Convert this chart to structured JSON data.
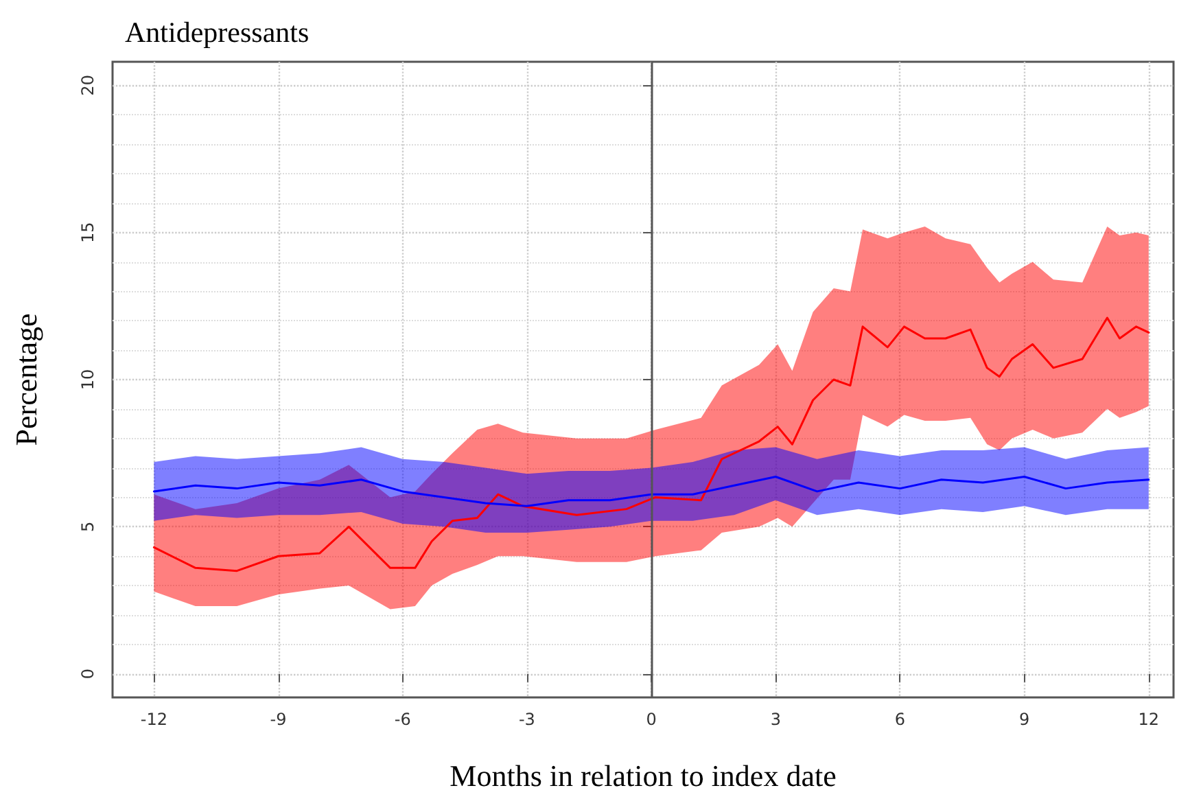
{
  "chart_data": {
    "type": "line",
    "title": "Antidepressants",
    "xlabel": "Months in relation to index date",
    "ylabel": "Percentage",
    "xlim": [
      -13,
      12.6
    ],
    "xticks": [
      -12,
      -9,
      -6,
      -3,
      0,
      3,
      6,
      9,
      12
    ],
    "ylim": [
      -0.8,
      20.8
    ],
    "yticks": [
      0,
      5,
      10,
      15,
      20
    ],
    "grid": true,
    "marker": "none",
    "line_style": "solid",
    "ref_lines": [
      {
        "axis": "x",
        "value": 0,
        "color": "#555555"
      }
    ],
    "series": [
      {
        "color": "#ff0000",
        "x": [
          -12,
          -11,
          -10,
          -9,
          -8,
          -7.3,
          -6.3,
          -5.7,
          -5.3,
          -4.8,
          -4.2,
          -3.7,
          -3.1,
          -1.8,
          -0.6,
          0.1,
          1.2,
          1.7,
          2.6,
          3.05,
          3.4,
          3.9,
          4.4,
          4.8,
          5.1,
          5.7,
          6.1,
          6.6,
          7.1,
          7.7,
          8.1,
          8.4,
          8.7,
          9.2,
          9.7,
          10.4,
          11,
          11.3,
          11.7,
          12
        ],
        "values": [
          4.3,
          3.6,
          3.5,
          4.0,
          4.1,
          5.0,
          3.6,
          3.6,
          4.5,
          5.2,
          5.3,
          6.1,
          5.7,
          5.4,
          5.6,
          6.0,
          5.9,
          7.3,
          7.9,
          8.4,
          7.8,
          9.3,
          10.0,
          9.8,
          11.8,
          11.1,
          11.8,
          11.4,
          11.4,
          11.7,
          10.4,
          10.1,
          10.7,
          11.2,
          10.4,
          10.7,
          12.1,
          11.4,
          11.8,
          11.6
        ],
        "upper": [
          6.1,
          5.6,
          5.8,
          6.3,
          6.6,
          7.1,
          6.0,
          6.2,
          6.8,
          7.5,
          8.3,
          8.5,
          8.2,
          8.0,
          8.0,
          8.3,
          8.7,
          9.8,
          10.5,
          11.2,
          10.3,
          12.3,
          13.1,
          13.0,
          15.1,
          14.8,
          15.0,
          15.2,
          14.8,
          14.6,
          13.8,
          13.3,
          13.6,
          14.0,
          13.4,
          13.3,
          15.2,
          14.9,
          15.0,
          14.9
        ],
        "lower": [
          2.8,
          2.3,
          2.3,
          2.7,
          2.9,
          3.0,
          2.2,
          2.3,
          3.0,
          3.4,
          3.7,
          4.0,
          4.0,
          3.8,
          3.8,
          4.0,
          4.2,
          4.8,
          5.0,
          5.3,
          5.0,
          5.8,
          6.6,
          6.6,
          8.8,
          8.4,
          8.8,
          8.6,
          8.6,
          8.7,
          7.8,
          7.6,
          8.0,
          8.3,
          8.0,
          8.2,
          9.0,
          8.7,
          8.9,
          9.1
        ]
      },
      {
        "color": "#0000ff",
        "x": [
          -12,
          -11,
          -10,
          -9,
          -8,
          -7,
          -6,
          -5,
          -4,
          -3,
          -2,
          -1,
          0,
          1,
          2,
          3,
          4,
          5,
          6,
          7,
          8,
          9,
          10,
          11,
          12
        ],
        "values": [
          6.2,
          6.4,
          6.3,
          6.5,
          6.4,
          6.6,
          6.2,
          6.0,
          5.8,
          5.7,
          5.9,
          5.9,
          6.1,
          6.1,
          6.4,
          6.7,
          6.2,
          6.5,
          6.3,
          6.6,
          6.5,
          6.7,
          6.3,
          6.5,
          6.6
        ],
        "upper": [
          7.2,
          7.4,
          7.3,
          7.4,
          7.5,
          7.7,
          7.3,
          7.2,
          7.0,
          6.8,
          6.9,
          6.9,
          7.0,
          7.2,
          7.6,
          7.7,
          7.3,
          7.6,
          7.4,
          7.6,
          7.6,
          7.7,
          7.3,
          7.6,
          7.7
        ],
        "lower": [
          5.2,
          5.4,
          5.3,
          5.4,
          5.4,
          5.5,
          5.1,
          5.0,
          4.8,
          4.8,
          4.9,
          5.0,
          5.2,
          5.2,
          5.4,
          5.9,
          5.4,
          5.6,
          5.4,
          5.6,
          5.5,
          5.7,
          5.4,
          5.6,
          5.6
        ]
      }
    ]
  }
}
